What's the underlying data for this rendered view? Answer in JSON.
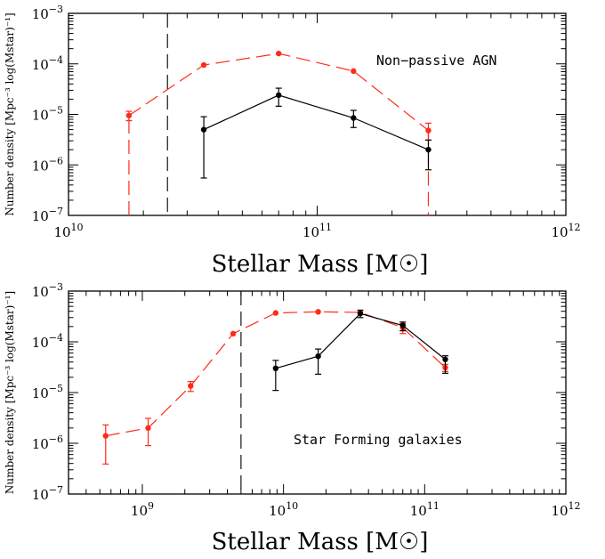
{
  "chart_data": [
    {
      "type": "line",
      "title": "",
      "xlabel": "Stellar Mass [M☉]",
      "ylabel": "Number density [Mpc⁻³ log(Mstar)⁻¹]",
      "xscale": "log",
      "yscale": "log",
      "xlim": [
        10000000000.0,
        1000000000000.0
      ],
      "ylim": [
        1e-07,
        0.001
      ],
      "xticks": [
        {
          "v": 10000000000.0,
          "m": "10",
          "e": "10"
        },
        {
          "v": 100000000000.0,
          "m": "10",
          "e": "11"
        },
        {
          "v": 1000000000000.0,
          "m": "10",
          "e": "12"
        }
      ],
      "yticks": [
        {
          "v": 1e-07,
          "m": "10",
          "e": "−7"
        },
        {
          "v": 1e-06,
          "m": "10",
          "e": "−6"
        },
        {
          "v": 1e-05,
          "m": "10",
          "e": "−5"
        },
        {
          "v": 0.0001,
          "m": "10",
          "e": "−4"
        },
        {
          "v": 0.001,
          "m": "10",
          "e": "−3"
        }
      ],
      "annotation": "Non−passive AGN",
      "vline": 25000000000.0,
      "series": [
        {
          "color": "#ff2a1a",
          "dashed": true,
          "x": [
            17500000000.0,
            35000000000.0,
            70000000000.0,
            140000000000.0,
            280000000000.0
          ],
          "y": [
            9.5e-06,
            9.5e-05,
            0.00016,
            7.2e-05,
            4.8e-06
          ],
          "ylo": [
            7.5e-06,
            9.5e-05,
            0.00016,
            7.2e-05,
            3.1e-06
          ],
          "yhi": [
            1.15e-05,
            9.5e-05,
            0.00016,
            7.2e-05,
            6.7e-06
          ],
          "drop_ends": true
        },
        {
          "color": "#000000",
          "dashed": false,
          "x": [
            35000000000.0,
            70000000000.0,
            140000000000.0,
            280000000000.0
          ],
          "y": [
            5e-06,
            2.4e-05,
            8.5e-06,
            2e-06
          ],
          "ylo": [
            5.5e-07,
            1.45e-05,
            5.5e-06,
            8e-07
          ],
          "yhi": [
            9e-06,
            3.3e-05,
            1.2e-05,
            3.1e-06
          ]
        }
      ]
    },
    {
      "type": "line",
      "title": "",
      "xlabel": "Stellar Mass [M☉]",
      "ylabel": "Number density [Mpc⁻³ log(Mstar)⁻¹]",
      "xscale": "log",
      "yscale": "log",
      "xlim": [
        300000000.0,
        1000000000000.0
      ],
      "ylim": [
        1e-07,
        0.001
      ],
      "xticks": [
        {
          "v": 1000000000.0,
          "m": "10",
          "e": "9"
        },
        {
          "v": 10000000000.0,
          "m": "10",
          "e": "10"
        },
        {
          "v": 100000000000.0,
          "m": "10",
          "e": "11"
        },
        {
          "v": 1000000000000.0,
          "m": "10",
          "e": "12"
        }
      ],
      "yticks": [
        {
          "v": 1e-07,
          "m": "10",
          "e": "−7"
        },
        {
          "v": 1e-06,
          "m": "10",
          "e": "−6"
        },
        {
          "v": 1e-05,
          "m": "10",
          "e": "−5"
        },
        {
          "v": 0.0001,
          "m": "10",
          "e": "−4"
        },
        {
          "v": 0.001,
          "m": "10",
          "e": "−3"
        }
      ],
      "annotation": "Star Forming galaxies",
      "vline": 5000000000.0,
      "series": [
        {
          "color": "#ff2a1a",
          "dashed": true,
          "x": [
            550000000.0,
            1100000000.0,
            2200000000.0,
            4400000000.0,
            8800000000.0,
            17600000000.0,
            35000000000.0,
            70000000000.0,
            140000000000.0
          ],
          "y": [
            1.4e-06,
            2e-06,
            1.35e-05,
            0.000145,
            0.00037,
            0.00039,
            0.00038,
            0.00019,
            3.1e-05
          ],
          "ylo": [
            3.9e-07,
            9e-07,
            1.05e-05,
            0.000145,
            0.00037,
            0.00039,
            0.00038,
            0.000145,
            2.6e-05
          ],
          "yhi": [
            2.3e-06,
            3.1e-06,
            1.65e-05,
            0.000145,
            0.00037,
            0.00039,
            0.00038,
            0.00023,
            3.6e-05
          ]
        },
        {
          "color": "#000000",
          "dashed": false,
          "x": [
            8800000000.0,
            17600000000.0,
            35000000000.0,
            70000000000.0,
            140000000000.0
          ],
          "y": [
            3e-05,
            5.2e-05,
            0.00036,
            0.00021,
            4.5e-05
          ],
          "ylo": [
            1.1e-05,
            2.3e-05,
            0.0003,
            0.000165,
            2.4e-05
          ],
          "yhi": [
            4.3e-05,
            7.2e-05,
            0.00042,
            0.000245,
            5.3e-05
          ]
        }
      ]
    }
  ]
}
